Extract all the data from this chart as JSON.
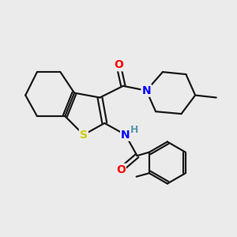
{
  "bg_color": "#ebebeb",
  "bond_color": "#1a1a1a",
  "bond_width": 1.6,
  "atom_colors": {
    "S": "#cccc00",
    "N": "#0000ff",
    "O": "#ff0000",
    "H": "#5599aa",
    "C": "#1a1a1a"
  },
  "font_size": 9,
  "figsize": [
    3.0,
    3.0
  ],
  "dpi": 100
}
